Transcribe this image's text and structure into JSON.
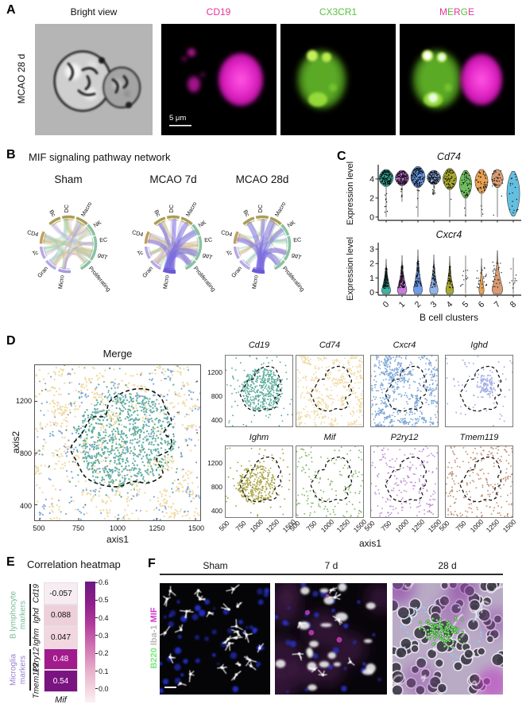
{
  "panel_a": {
    "letter": "A",
    "row_label": "MCAO 28 d",
    "labels": {
      "bright": "Bright view",
      "cd19": "CD19",
      "cx3cr1": "CX3CR1"
    },
    "label_colors": {
      "bright": "#1a1a1a",
      "cd19": "#e8319e",
      "cx3cr1": "#56c23a"
    },
    "merge_letters": [
      {
        "ch": "M",
        "color": "#e8319e"
      },
      {
        "ch": "E",
        "color": "#56c23a"
      },
      {
        "ch": "R",
        "color": "#e8319e"
      },
      {
        "ch": "G",
        "color": "#56c23a"
      },
      {
        "ch": "E",
        "color": "#e8319e"
      }
    ],
    "scale_bar_text": "5 μm"
  },
  "panel_b": {
    "letter": "B",
    "title": "MIF signaling pathway network",
    "conditions": [
      "Sham",
      "MCAO 7d",
      "MCAO 28d"
    ],
    "node_labels": [
      "DC",
      "Macro",
      "NK",
      "EC",
      "gdT",
      "Proliferating",
      "Micro",
      "Gran",
      "Tc",
      "CD4",
      "Bc"
    ]
  },
  "panel_c": {
    "letter": "C",
    "ylabel": "Expression level",
    "xlabel": "B cell clusters",
    "clusters": [
      "0",
      "1",
      "2",
      "3",
      "4",
      "5",
      "6",
      "7",
      "8"
    ],
    "plot1_title": "Cd74",
    "plot2_title": "Cxcr4"
  },
  "panel_d": {
    "letter": "D",
    "merge_title": "Merge",
    "xlabel": "axis1",
    "ylabel": "axis2",
    "xticks": [
      "500",
      "750",
      "1000",
      "1250",
      "1500"
    ],
    "yticks": [
      "1200",
      "800",
      "400"
    ],
    "genes_row1": [
      {
        "name": "Cd19",
        "color": "#5fae9f"
      },
      {
        "name": "Cd74",
        "color": "#f0dca9"
      },
      {
        "name": "Cxcr4",
        "color": "#7fa8d8"
      },
      {
        "name": "Ighd",
        "color": "#a0ace4"
      }
    ],
    "genes_row2": [
      {
        "name": "Ighm",
        "color": "#a9a344"
      },
      {
        "name": "Mif",
        "color": "#83b767"
      },
      {
        "name": "P2ry12",
        "color": "#c392d9"
      },
      {
        "name": "Tmem119",
        "color": "#c39175"
      }
    ]
  },
  "panel_e": {
    "letter": "E",
    "title": "Correlation heatmap",
    "col_label": "Mif",
    "rows": [
      {
        "label": "Cd19",
        "value": "-0.057",
        "bg": "#f7ecf2",
        "fg": "#111111"
      },
      {
        "label": "Ighd",
        "value": "0.088",
        "bg": "#eed0da",
        "fg": "#111111"
      },
      {
        "label": "Ighm",
        "value": "0.047",
        "bg": "#f2d7e0",
        "fg": "#111111"
      },
      {
        "label": "P2ry12",
        "value": "0.48",
        "bg": "#a21b8d",
        "fg": "#ffffff"
      },
      {
        "label": "Tmem119",
        "value": "0.54",
        "bg": "#7a1480",
        "fg": "#ffffff"
      }
    ],
    "groups": [
      {
        "label_lines": [
          "B lymphocyte",
          "markers"
        ],
        "color": "#79bd98"
      },
      {
        "label_lines": [
          "Microglia",
          "markers"
        ],
        "color": "#9a7fd1"
      }
    ],
    "colorbar_ticks": [
      "0.6",
      "0.5",
      "0.4",
      "0.3",
      "0.2",
      "0.1",
      "0.0"
    ]
  },
  "panel_f": {
    "letter": "F",
    "columns": [
      "Sham",
      "7 d",
      "28 d"
    ],
    "stains": [
      {
        "text": "B220",
        "color": "#78e878"
      },
      {
        "text": "Iba-1",
        "color": "#b8b8b8"
      },
      {
        "text": "MIF",
        "color": "#d238d2"
      }
    ]
  },
  "chart_data": [
    {
      "type": "violin",
      "title": "Cd74",
      "ylabel": "Expression level",
      "xlabel": "B cell clusters",
      "categories": [
        "0",
        "1",
        "2",
        "3",
        "4",
        "5",
        "6",
        "7",
        "8"
      ],
      "yticks": [
        0,
        2,
        4
      ],
      "ylim": [
        0,
        5.4
      ],
      "series": [
        {
          "cluster": "0",
          "color": "#3cb4a4",
          "shape": "top",
          "bulb": [
            3.2,
            5.0
          ],
          "stem_to": 0,
          "width": 1.0,
          "n_points": 170,
          "density": "dense"
        },
        {
          "cluster": "1",
          "color": "#c77cdb",
          "shape": "top",
          "bulb": [
            3.3,
            4.9
          ],
          "stem_to": 1.6,
          "width": 0.95,
          "n_points": 160,
          "density": "dense"
        },
        {
          "cluster": "2",
          "color": "#6d9eeb",
          "shape": "top",
          "bulb": [
            3.1,
            5.3
          ],
          "stem_to": 0,
          "width": 1.0,
          "n_points": 160,
          "density": "dense"
        },
        {
          "cluster": "3",
          "color": "#93b3ea",
          "shape": "top",
          "bulb": [
            3.4,
            4.9
          ],
          "stem_to": 2.3,
          "width": 0.95,
          "n_points": 150,
          "density": "dense"
        },
        {
          "cluster": "4",
          "color": "#a8a832",
          "shape": "top",
          "bulb": [
            2.9,
            5.1
          ],
          "stem_to": 0,
          "width": 0.95,
          "n_points": 60,
          "density": "medium"
        },
        {
          "cluster": "5",
          "color": "#6fbf5f",
          "shape": "top",
          "bulb": [
            2.0,
            4.9
          ],
          "stem_to": 0,
          "width": 0.85,
          "n_points": 55,
          "density": "medium"
        },
        {
          "cluster": "6",
          "color": "#e8a254",
          "shape": "top",
          "bulb": [
            2.5,
            5.0
          ],
          "stem_to": 0,
          "width": 0.9,
          "n_points": 50,
          "density": "medium"
        },
        {
          "cluster": "7",
          "color": "#d89b72",
          "shape": "top",
          "bulb": [
            3.1,
            5.0
          ],
          "stem_to": 0,
          "width": 0.8,
          "n_points": 38,
          "density": "medium"
        },
        {
          "cluster": "8",
          "color": "#64bee0",
          "shape": "top",
          "bulb": [
            0.1,
            4.8
          ],
          "stem_to": null,
          "width": 0.9,
          "n_points": 20,
          "density": "sparse"
        }
      ]
    },
    {
      "type": "violin",
      "title": "Cxcr4",
      "ylabel": "Expression level",
      "xlabel": "B cell clusters",
      "categories": [
        "0",
        "1",
        "2",
        "3",
        "4",
        "5",
        "6",
        "7",
        "8"
      ],
      "yticks": [
        0,
        1,
        2,
        3
      ],
      "ylim": [
        0,
        3.2
      ],
      "series": [
        {
          "cluster": "0",
          "color": "#3cb4a4",
          "shape": "onion",
          "tip": 2.3,
          "width": 0.8,
          "n_points": 150,
          "density": "dense"
        },
        {
          "cluster": "1",
          "color": "#c77cdb",
          "shape": "onion",
          "tip": 2.55,
          "width": 0.85,
          "n_points": 150,
          "density": "dense"
        },
        {
          "cluster": "2",
          "color": "#6d9eeb",
          "shape": "onion",
          "tip": 2.95,
          "width": 0.8,
          "n_points": 80,
          "density": "medium"
        },
        {
          "cluster": "3",
          "color": "#93b3ea",
          "shape": "onion",
          "tip": 2.6,
          "width": 0.75,
          "n_points": 70,
          "density": "medium"
        },
        {
          "cluster": "4",
          "color": "#a8a832",
          "shape": "onion",
          "tip": 2.5,
          "width": 0.7,
          "n_points": 55,
          "density": "medium"
        },
        {
          "cluster": "5",
          "color": "#9a9a9a",
          "shape": "onion",
          "tip": 2.55,
          "width": 0.08,
          "n_points": 12,
          "density": "sparse"
        },
        {
          "cluster": "6",
          "color": "#e8a254",
          "shape": "onion",
          "tip": 2.35,
          "width": 0.45,
          "n_points": 25,
          "density": "sparse"
        },
        {
          "cluster": "7",
          "color": "#d89b72",
          "shape": "onion",
          "tip": 2.9,
          "width": 0.95,
          "n_points": 25,
          "density": "sparse"
        },
        {
          "cluster": "8",
          "color": "#9a9a9a",
          "shape": "onion",
          "tip": 2.4,
          "width": 0.08,
          "n_points": 10,
          "density": "sparse"
        }
      ]
    },
    {
      "type": "scatter",
      "title": "Merge",
      "xlabel": "axis1",
      "ylabel": "axis2",
      "xlim": [
        470,
        1530
      ],
      "ylim": [
        280,
        1480
      ],
      "xticks": [
        500,
        750,
        1000,
        1250,
        1500
      ],
      "yticks": [
        400,
        800,
        1200
      ],
      "annotation": "dashed outline encircling the central B cell cluster region",
      "series": [
        {
          "name": "Cd19",
          "color": "#5fae9f",
          "pattern": "dense inside outline"
        },
        {
          "name": "Cd74",
          "color": "#f0dca9",
          "pattern": "dense everywhere"
        },
        {
          "name": "Cxcr4",
          "color": "#7fa8d8",
          "pattern": "dense everywhere"
        },
        {
          "name": "Ighd",
          "color": "#a0ace4",
          "pattern": "sparse, mostly inside outline"
        },
        {
          "name": "Ighm",
          "color": "#a9a344",
          "pattern": "dense inside outline"
        },
        {
          "name": "Mif",
          "color": "#83b767",
          "pattern": "sparse everywhere"
        },
        {
          "name": "P2ry12",
          "color": "#c392d9",
          "pattern": "sparse everywhere"
        },
        {
          "name": "Tmem119",
          "color": "#c39175",
          "pattern": "sparse everywhere"
        }
      ]
    },
    {
      "type": "heatmap",
      "title": "Correlation heatmap",
      "rows": [
        "Cd19",
        "Ighd",
        "Ighm",
        "P2ry12",
        "Tmem119"
      ],
      "columns": [
        "Mif"
      ],
      "values": [
        [
          -0.057
        ],
        [
          0.088
        ],
        [
          0.047
        ],
        [
          0.48
        ],
        [
          0.54
        ]
      ],
      "colorbar_range": [
        0.0,
        0.6
      ],
      "colorbar_ticks": [
        0.6,
        0.5,
        0.4,
        0.3,
        0.2,
        0.1,
        0.0
      ],
      "row_groups": [
        {
          "label": "B lymphocyte markers",
          "rows": [
            "Cd19",
            "Ighd",
            "Ighm"
          ]
        },
        {
          "label": "Microglia markers",
          "rows": [
            "P2ry12",
            "Tmem119"
          ]
        }
      ]
    }
  ]
}
